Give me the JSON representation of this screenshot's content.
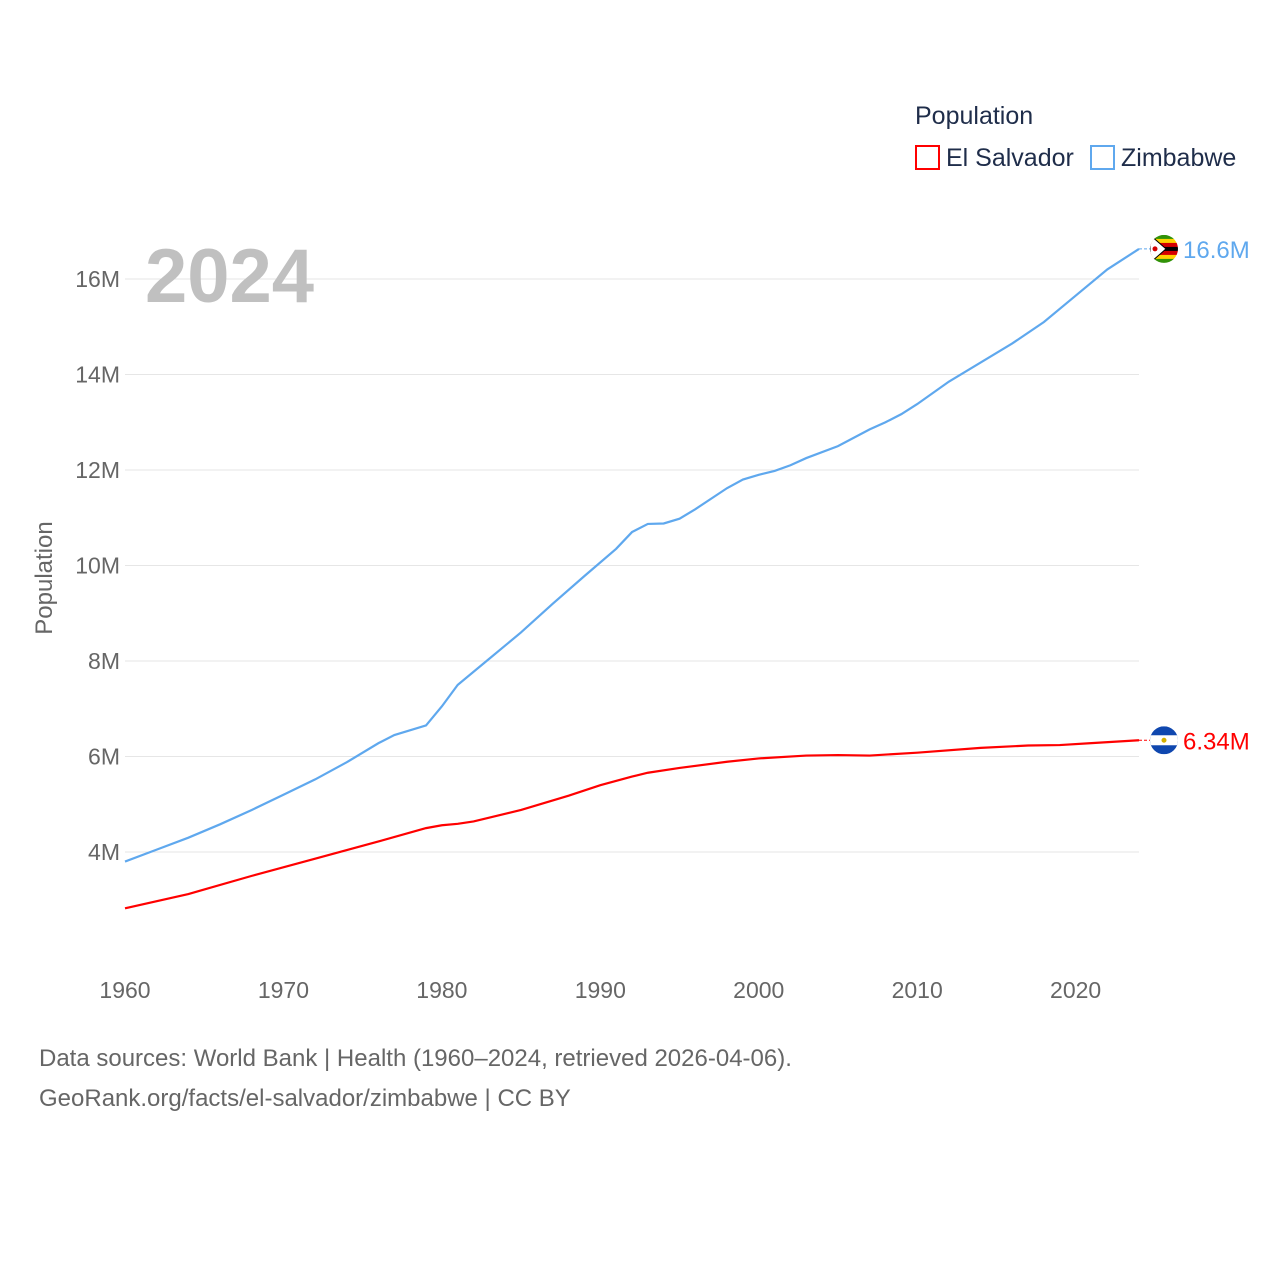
{
  "chart_data": {
    "type": "line",
    "title": "Population",
    "year_label": "2024",
    "ylabel": "Population",
    "xlabel": "",
    "xlim": [
      1960,
      2024
    ],
    "ylim": [
      2.2,
      17
    ],
    "x_ticks": [
      "1960",
      "1970",
      "1980",
      "1990",
      "2000",
      "2010",
      "2020"
    ],
    "y_ticks": [
      {
        "v": 4,
        "label": "4M"
      },
      {
        "v": 6,
        "label": "6M"
      },
      {
        "v": 8,
        "label": "8M"
      },
      {
        "v": 10,
        "label": "10M"
      },
      {
        "v": 12,
        "label": "12M"
      },
      {
        "v": 14,
        "label": "14M"
      },
      {
        "v": 16,
        "label": "16M"
      }
    ],
    "grid": true,
    "legend_position": "top-right",
    "series": [
      {
        "name": "El Salvador",
        "color": "#ff0000",
        "end_label": "6.34M",
        "flag": "el-salvador",
        "points": [
          [
            1960,
            2.82
          ],
          [
            1964,
            3.12
          ],
          [
            1968,
            3.5
          ],
          [
            1972,
            3.86
          ],
          [
            1976,
            4.22
          ],
          [
            1979,
            4.5
          ],
          [
            1980,
            4.56
          ],
          [
            1981,
            4.59
          ],
          [
            1982,
            4.64
          ],
          [
            1985,
            4.88
          ],
          [
            1988,
            5.18
          ],
          [
            1990,
            5.4
          ],
          [
            1992,
            5.58
          ],
          [
            1993,
            5.66
          ],
          [
            1995,
            5.76
          ],
          [
            1998,
            5.89
          ],
          [
            2000,
            5.96
          ],
          [
            2003,
            6.02
          ],
          [
            2005,
            6.03
          ],
          [
            2007,
            6.02
          ],
          [
            2010,
            6.08
          ],
          [
            2014,
            6.18
          ],
          [
            2017,
            6.23
          ],
          [
            2019,
            6.24
          ],
          [
            2021,
            6.28
          ],
          [
            2024,
            6.34
          ]
        ]
      },
      {
        "name": "Zimbabwe",
        "color": "#5fa8ee",
        "end_label": "16.6M",
        "flag": "zimbabwe",
        "points": [
          [
            1960,
            3.8
          ],
          [
            1962,
            4.05
          ],
          [
            1964,
            4.3
          ],
          [
            1966,
            4.58
          ],
          [
            1968,
            4.88
          ],
          [
            1970,
            5.2
          ],
          [
            1972,
            5.52
          ],
          [
            1974,
            5.88
          ],
          [
            1976,
            6.28
          ],
          [
            1977,
            6.45
          ],
          [
            1979,
            6.65
          ],
          [
            1980,
            7.05
          ],
          [
            1981,
            7.5
          ],
          [
            1983,
            8.05
          ],
          [
            1985,
            8.6
          ],
          [
            1987,
            9.2
          ],
          [
            1989,
            9.78
          ],
          [
            1991,
            10.35
          ],
          [
            1992,
            10.7
          ],
          [
            1993,
            10.87
          ],
          [
            1994,
            10.88
          ],
          [
            1995,
            10.98
          ],
          [
            1996,
            11.18
          ],
          [
            1998,
            11.62
          ],
          [
            1999,
            11.8
          ],
          [
            2000,
            11.9
          ],
          [
            2001,
            11.98
          ],
          [
            2002,
            12.1
          ],
          [
            2003,
            12.25
          ],
          [
            2005,
            12.5
          ],
          [
            2007,
            12.85
          ],
          [
            2008,
            13.0
          ],
          [
            2009,
            13.17
          ],
          [
            2010,
            13.38
          ],
          [
            2012,
            13.85
          ],
          [
            2014,
            14.25
          ],
          [
            2016,
            14.65
          ],
          [
            2018,
            15.1
          ],
          [
            2020,
            15.65
          ],
          [
            2022,
            16.2
          ],
          [
            2024,
            16.63
          ]
        ]
      }
    ]
  },
  "footer": {
    "line1": "Data sources: World Bank | Health (1960–2024, retrieved 2026-04-06).",
    "line2": "GeoRank.org/facts/el-salvador/zimbabwe | CC BY"
  }
}
